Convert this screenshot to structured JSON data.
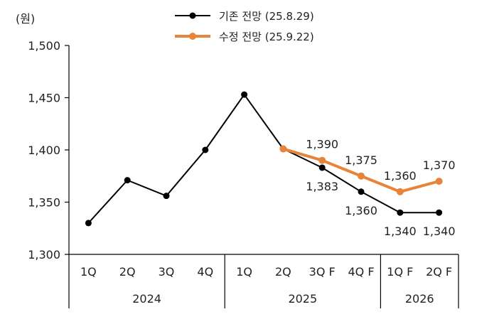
{
  "chart_data": {
    "type": "line",
    "unit_label": "(원)",
    "ylim": [
      1300,
      1500
    ],
    "yticks": [
      1300,
      1350,
      1400,
      1450,
      1500
    ],
    "ytick_labels": [
      "1,300",
      "1,350",
      "1,400",
      "1,450",
      "1,500"
    ],
    "categories": [
      "1Q",
      "2Q",
      "3Q",
      "4Q",
      "1Q",
      "2Q",
      "3Q F",
      "4Q F",
      "1Q F",
      "2Q F"
    ],
    "year_groups": [
      {
        "label": "2024",
        "span": 4
      },
      {
        "label": "2025",
        "span": 4
      },
      {
        "label": "2026",
        "span": 2
      }
    ],
    "legend_position": "top-center",
    "series": [
      {
        "name": "기존 전망 (25.8.29)",
        "color": "#000000",
        "values": [
          1330,
          1371,
          1356,
          1400,
          1453,
          1401,
          1383,
          1360,
          1340,
          1340
        ],
        "data_labels": [
          null,
          null,
          null,
          null,
          null,
          null,
          "1,383",
          "1,360",
          "1,340",
          "1,340"
        ]
      },
      {
        "name": "수정 전망 (25.9.22)",
        "color": "#E8833A",
        "values": [
          null,
          null,
          null,
          null,
          null,
          1401,
          1390,
          1375,
          1360,
          1370
        ],
        "data_labels": [
          null,
          null,
          null,
          null,
          null,
          null,
          "1,390",
          "1,375",
          "1,360",
          "1,370"
        ]
      }
    ]
  }
}
